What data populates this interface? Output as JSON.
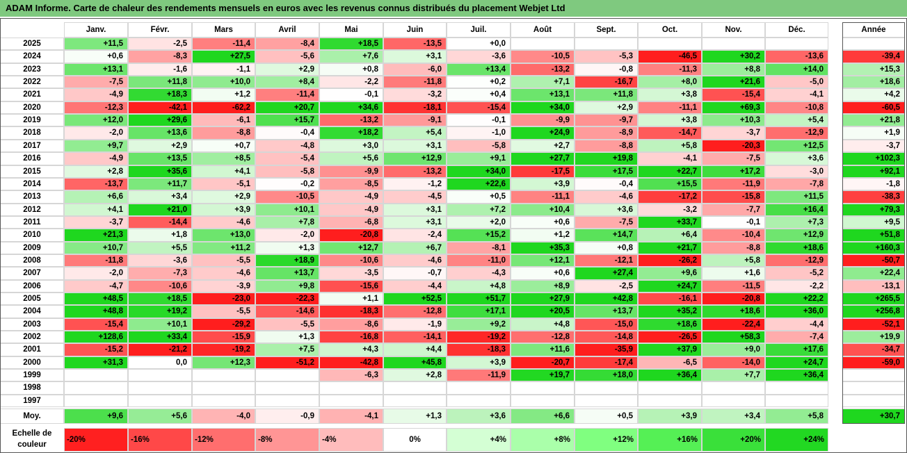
{
  "title": "ADAM Informe. Carte de chaleur des rendements mensuels en euros avec les revenus connus distribués du placement Webjet Ltd",
  "chart_data": {
    "type": "heatmap",
    "months": [
      "Janv.",
      "Févr.",
      "Mars",
      "Avril",
      "Mai",
      "Juin",
      "Juil.",
      "Août",
      "Sept.",
      "Oct.",
      "Nov.",
      "Déc."
    ],
    "year_header": "Année",
    "rows": [
      {
        "year": "2025",
        "values": [
          "+11,5",
          "-2,5",
          "-11,4",
          "-8,4",
          "+18,5",
          "-13,5",
          "+0,0",
          "",
          "",
          "",
          "",
          ""
        ],
        "annual": ""
      },
      {
        "year": "2024",
        "values": [
          "+0,6",
          "-8,3",
          "+27,5",
          "-5,6",
          "+7,6",
          "+3,1",
          "-3,6",
          "-10,5",
          "-5,3",
          "-46,5",
          "+30,2",
          "-13,6"
        ],
        "annual": "-39,4"
      },
      {
        "year": "2023",
        "values": [
          "+13,1",
          "-1,6",
          "-1,1",
          "+2,9",
          "+0,8",
          "-6,0",
          "+13,4",
          "-13,2",
          "-0,8",
          "-11,3",
          "+8,8",
          "+14,0"
        ],
        "annual": "+15,3"
      },
      {
        "year": "2022",
        "values": [
          "-7,5",
          "+11,8",
          "+10,0",
          "+8,4",
          "-2,2",
          "-11,8",
          "+0,2",
          "+7,1",
          "-16,7",
          "+8,0",
          "+21,6",
          "-5,0"
        ],
        "annual": "+18,6"
      },
      {
        "year": "2021",
        "values": [
          "-4,9",
          "+18,3",
          "+1,2",
          "-11,4",
          "-0,1",
          "-3,2",
          "+0,4",
          "+13,1",
          "+11,8",
          "+3,8",
          "-15,4",
          "-4,1"
        ],
        "annual": "+4,2"
      },
      {
        "year": "2020",
        "values": [
          "-12,3",
          "-42,1",
          "-62,2",
          "+20,7",
          "+34,6",
          "-18,1",
          "-15,4",
          "+34,0",
          "+2,9",
          "-11,1",
          "+69,3",
          "-10,8"
        ],
        "annual": "-60,5"
      },
      {
        "year": "2019",
        "values": [
          "+12,0",
          "+29,6",
          "-6,1",
          "+15,7",
          "-13,2",
          "-9,1",
          "-0,1",
          "-9,9",
          "-9,7",
          "+3,8",
          "+10,3",
          "+5,4"
        ],
        "annual": "+21,8"
      },
      {
        "year": "2018",
        "values": [
          "-2,0",
          "+13,6",
          "-8,8",
          "-0,4",
          "+18,2",
          "+5,4",
          "-1,0",
          "+24,9",
          "-8,9",
          "-14,7",
          "-3,7",
          "-12,9"
        ],
        "annual": "+1,9"
      },
      {
        "year": "2017",
        "values": [
          "+9,7",
          "+2,9",
          "+0,7",
          "-4,8",
          "+3,0",
          "+3,1",
          "-5,8",
          "+2,7",
          "-8,8",
          "+5,8",
          "-20,3",
          "+12,5"
        ],
        "annual": "-3,7"
      },
      {
        "year": "2016",
        "values": [
          "-4,9",
          "+13,5",
          "+8,5",
          "-5,4",
          "+5,6",
          "+12,9",
          "+9,1",
          "+27,7",
          "+19,8",
          "-4,1",
          "-7,5",
          "+3,6"
        ],
        "annual": "+102,3"
      },
      {
        "year": "2015",
        "values": [
          "+2,8",
          "+35,6",
          "+4,1",
          "-5,8",
          "-9,9",
          "-13,2",
          "+34,0",
          "-17,5",
          "+17,5",
          "+22,7",
          "+17,2",
          "-3,0"
        ],
        "annual": "+92,1"
      },
      {
        "year": "2014",
        "values": [
          "-13,7",
          "+11,7",
          "-5,1",
          "-0,2",
          "-8,5",
          "-1,2",
          "+22,6",
          "+3,9",
          "-0,4",
          "+15,5",
          "-11,9",
          "-7,8"
        ],
        "annual": "-1,8"
      },
      {
        "year": "2013",
        "values": [
          "+6,6",
          "+3,4",
          "+2,9",
          "-10,5",
          "-4,9",
          "-4,5",
          "+0,5",
          "-11,1",
          "-4,6",
          "-17,2",
          "-15,8",
          "+11,5"
        ],
        "annual": "-38,3"
      },
      {
        "year": "2012",
        "values": [
          "+4,1",
          "+21,0",
          "+3,9",
          "+10,1",
          "-4,9",
          "+3,1",
          "+7,2",
          "+10,4",
          "+3,6",
          "-3,2",
          "-7,7",
          "+16,4"
        ],
        "annual": "+79,3"
      },
      {
        "year": "2011",
        "values": [
          "-3,7",
          "-14,4",
          "-4,6",
          "+7,8",
          "-6,8",
          "+3,1",
          "+2,0",
          "+0,6",
          "-7,5",
          "+33,7",
          "-0,1",
          "+7,3"
        ],
        "annual": "+9,5"
      },
      {
        "year": "2010",
        "values": [
          "+21,3",
          "+1,8",
          "+13,0",
          "-2,0",
          "-20,8",
          "-2,4",
          "+15,2",
          "+1,2",
          "+14,7",
          "+6,4",
          "-10,4",
          "+12,9"
        ],
        "annual": "+51,8"
      },
      {
        "year": "2009",
        "values": [
          "+10,7",
          "+5,5",
          "+11,2",
          "+1,3",
          "+12,7",
          "+6,7",
          "-8,1",
          "+35,3",
          "+0,8",
          "+21,7",
          "-8,8",
          "+18,6"
        ],
        "annual": "+160,3"
      },
      {
        "year": "2008",
        "values": [
          "-11,8",
          "-3,6",
          "-5,5",
          "+18,9",
          "-10,6",
          "-4,6",
          "-11,0",
          "+12,1",
          "-12,1",
          "-26,2",
          "+5,8",
          "-12,9"
        ],
        "annual": "-50,7"
      },
      {
        "year": "2007",
        "values": [
          "-2,0",
          "-7,3",
          "-4,6",
          "+13,7",
          "-3,5",
          "-0,7",
          "-4,3",
          "+0,6",
          "+27,4",
          "+9,6",
          "+1,6",
          "-5,2"
        ],
        "annual": "+22,4"
      },
      {
        "year": "2006",
        "values": [
          "-4,7",
          "-10,6",
          "-3,9",
          "+9,8",
          "-15,6",
          "-4,4",
          "+4,8",
          "+8,9",
          "-2,5",
          "+24,7",
          "-11,5",
          "-2,2"
        ],
        "annual": "-13,1"
      },
      {
        "year": "2005",
        "values": [
          "+48,5",
          "+18,5",
          "-23,0",
          "-22,3",
          "+1,1",
          "+52,5",
          "+51,7",
          "+27,9",
          "+42,8",
          "-16,1",
          "-20,8",
          "+22,2"
        ],
        "annual": "+265,5"
      },
      {
        "year": "2004",
        "values": [
          "+48,8",
          "+19,2",
          "-5,5",
          "-14,6",
          "-18,3",
          "-12,8",
          "+17,1",
          "+20,5",
          "+13,7",
          "+35,2",
          "+18,6",
          "+36,0"
        ],
        "annual": "+256,8"
      },
      {
        "year": "2003",
        "values": [
          "-15,4",
          "+10,1",
          "-29,2",
          "-5,5",
          "-8,6",
          "-1,9",
          "+9,2",
          "+4,8",
          "-15,0",
          "+18,6",
          "-22,4",
          "-4,4"
        ],
        "annual": "-52,1"
      },
      {
        "year": "2002",
        "values": [
          "+128,6",
          "+33,4",
          "-15,9",
          "+1,3",
          "-16,8",
          "-14,1",
          "-19,2",
          "-12,8",
          "-14,8",
          "-26,5",
          "+58,3",
          "-7,4"
        ],
        "annual": "+19,9"
      },
      {
        "year": "2001",
        "values": [
          "-15,2",
          "-21,2",
          "-19,2",
          "+7,5",
          "+4,3",
          "+4,4",
          "-18,3",
          "+11,6",
          "-35,9",
          "+37,9",
          "+9,0",
          "+17,6"
        ],
        "annual": "-34,7"
      },
      {
        "year": "2000",
        "values": [
          "+31,3",
          "0,0",
          "+12,3",
          "-51,2",
          "-42,8",
          "+45,8",
          "+3,9",
          "-20,7",
          "-17,4",
          "-6,5",
          "-14,0",
          "+24,7"
        ],
        "annual": "-59,0"
      },
      {
        "year": "1999",
        "values": [
          "",
          "",
          "",
          "",
          "-6,3",
          "+2,8",
          "-11,9",
          "+19,7",
          "+18,0",
          "+36,4",
          "+7,7",
          "+36,4"
        ],
        "annual": ""
      },
      {
        "year": "1998",
        "values": [
          "",
          "",
          "",
          "",
          "",
          "",
          "",
          "",
          "",
          "",
          "",
          ""
        ],
        "annual": ""
      },
      {
        "year": "1997",
        "values": [
          "",
          "",
          "",
          "",
          "",
          "",
          "",
          "",
          "",
          "",
          "",
          ""
        ],
        "annual": ""
      }
    ],
    "average": {
      "label": "Moy.",
      "values": [
        "+9,6",
        "+5,6",
        "-4,0",
        "-0,9",
        "-4,1",
        "+1,3",
        "+3,6",
        "+6,6",
        "+0,5",
        "+3,9",
        "+3,4",
        "+5,8"
      ],
      "annual": "+30,7"
    },
    "color_scale": {
      "label_line1": "Echelle de",
      "label_line2": "couleur",
      "steps": [
        {
          "label": "-20%",
          "value": -20,
          "color": "#ff2020"
        },
        {
          "label": "-16%",
          "value": -16,
          "color": "#ff4848"
        },
        {
          "label": "-12%",
          "value": -12,
          "color": "#ff6e6e"
        },
        {
          "label": "-8%",
          "value": -8,
          "color": "#ff9595"
        },
        {
          "label": "-4%",
          "value": -4,
          "color": "#ffbcbc"
        },
        {
          "label": "0%",
          "value": 0,
          "color": "#ffffff"
        },
        {
          "label": "+4%",
          "value": 4,
          "color": "#d4ffd4"
        },
        {
          "label": "+8%",
          "value": 8,
          "color": "#aaffaa"
        },
        {
          "label": "+12%",
          "value": 12,
          "color": "#80ff80"
        },
        {
          "label": "+16%",
          "value": 16,
          "color": "#55f055"
        },
        {
          "label": "+20%",
          "value": 20,
          "color": "#3ae03a"
        },
        {
          "label": "+24%",
          "value": 24,
          "color": "#22d822"
        }
      ]
    },
    "colors": {
      "negative_max": "#ff1a1a",
      "neutral": "#ffffff",
      "positive_max": "#1fd81f",
      "title_bar": "#7fc97f"
    }
  }
}
